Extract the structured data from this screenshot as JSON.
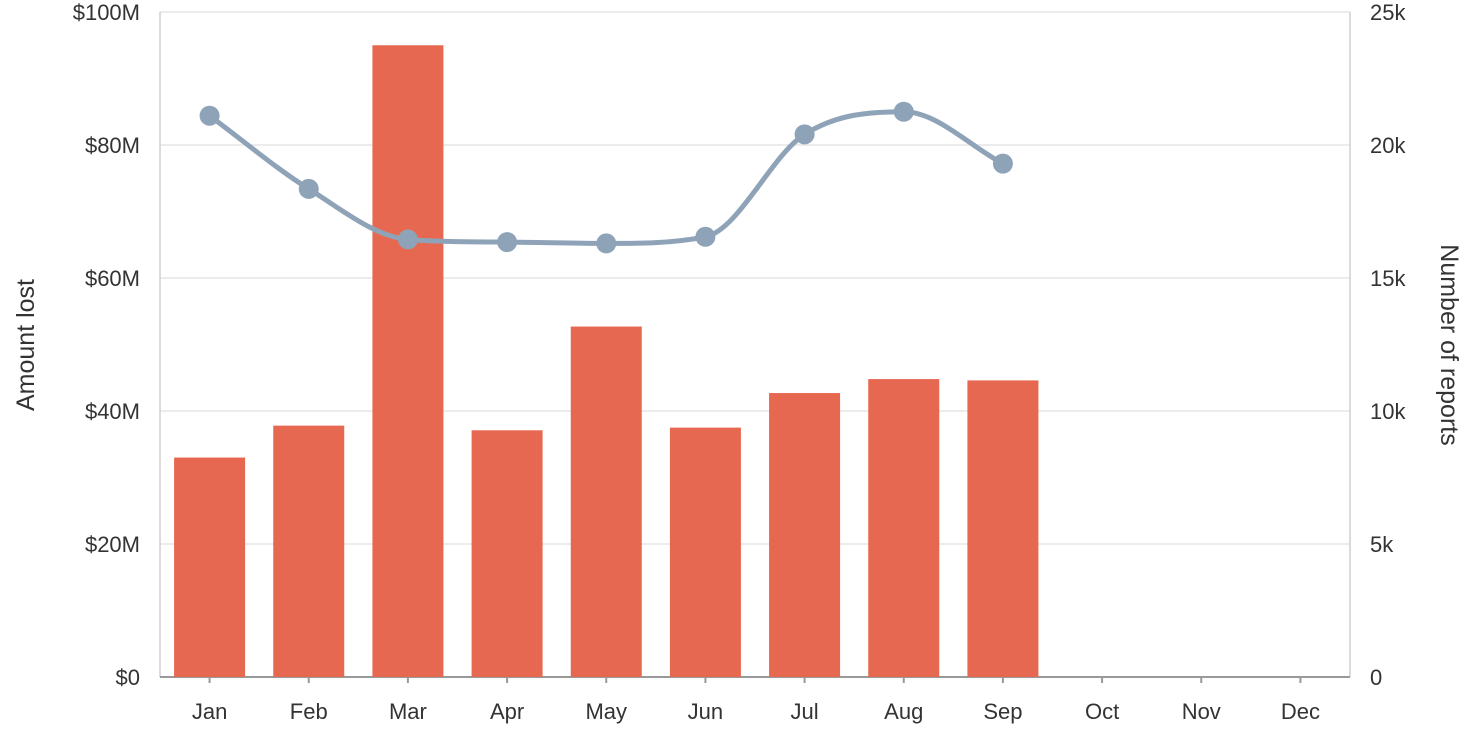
{
  "chart_data": {
    "type": "bar",
    "categories": [
      "Jan",
      "Feb",
      "Mar",
      "Apr",
      "May",
      "Jun",
      "Jul",
      "Aug",
      "Sep",
      "Oct",
      "Nov",
      "Dec"
    ],
    "series": [
      {
        "type": "bar",
        "axis": "left",
        "color": "#e76850",
        "values": [
          33000000,
          37800000,
          95000000,
          37100000,
          52700000,
          37500000,
          42700000,
          44800000,
          44600000,
          null,
          null,
          null
        ]
      },
      {
        "type": "line",
        "axis": "right",
        "color": "#8fa3b8",
        "smooth": true,
        "values": [
          21100,
          18350,
          16450,
          16350,
          16300,
          16550,
          20400,
          21250,
          19300,
          null,
          null,
          null
        ]
      }
    ],
    "ylabel": "Amount lost",
    "y2label": "Number of reports",
    "ylim": [
      0,
      100000000
    ],
    "y2lim": [
      0,
      25000
    ],
    "yticks": [
      "$0",
      "$20M",
      "$40M",
      "$60M",
      "$80M",
      "$100M"
    ],
    "y2ticks": [
      "0",
      "5k",
      "10k",
      "15k",
      "20k",
      "25k"
    ],
    "grid": true,
    "legend": "none"
  }
}
